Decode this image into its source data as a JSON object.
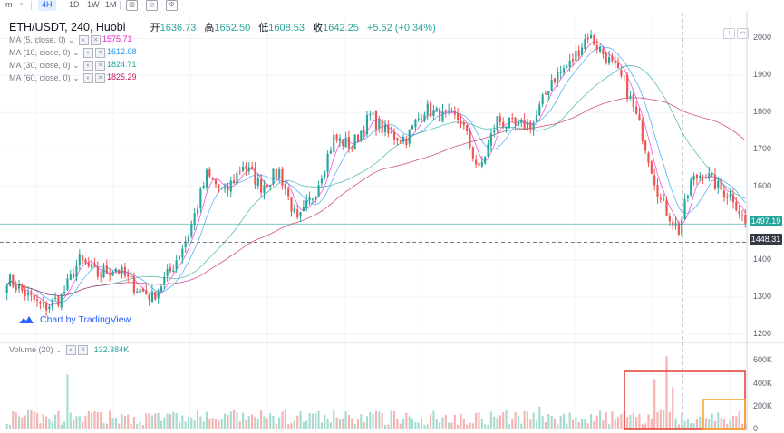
{
  "toolbar": {
    "items": [
      "m",
      "4H",
      "1D",
      "1W",
      "1M"
    ],
    "active": "4H"
  },
  "legend": {
    "title": "ETH/USDT, 240, Huobi",
    "ohlc": [
      {
        "k": "开",
        "v": "1636.73"
      },
      {
        "k": "高",
        "v": "1652.50"
      },
      {
        "k": "低",
        "v": "1608.53"
      },
      {
        "k": "收",
        "v": "1642.25"
      }
    ],
    "change": "+5.52 (+0.34%)"
  },
  "indicators": [
    {
      "label": "MA (5, close, 0)",
      "value": "1575.71",
      "color": "#e91ecc"
    },
    {
      "label": "MA (10, close, 0)",
      "value": "1612.08",
      "color": "#2196f3"
    },
    {
      "label": "MA (30, close, 0)",
      "value": "1824.71",
      "color": "#26a69a"
    },
    {
      "label": "MA (60, close, 0)",
      "value": "1825.29",
      "color": "#c2185b"
    }
  ],
  "volume": {
    "label": "Volume (20)",
    "value": "132.384K"
  },
  "watermark": "Chart by TradingView",
  "colors": {
    "up": "#26a69a",
    "down": "#ef5350",
    "vol_up": "#a5dccf",
    "vol_down": "#f5b3b1",
    "red_box": "#e53935",
    "orange_box": "#f5a623"
  },
  "chart_data": {
    "type": "candlestick",
    "symbol": "ETH/USDT",
    "interval": "240",
    "exchange": "Huobi",
    "price_axis": {
      "ticks": [
        1200,
        1300,
        1400,
        1500,
        1600,
        1700,
        1800,
        1900,
        2000
      ],
      "ylim": [
        1180,
        2060
      ]
    },
    "volume_axis": {
      "ticks": [
        "0",
        "200K",
        "400K",
        "600K"
      ],
      "ylim": [
        0,
        650000
      ]
    },
    "last_price": "1497.19",
    "crosshair_price": "1448.31",
    "close_path": [
      [
        0,
        1350
      ],
      [
        6,
        1310
      ],
      [
        12,
        1270
      ],
      [
        18,
        1300
      ],
      [
        24,
        1400
      ],
      [
        30,
        1360
      ],
      [
        36,
        1380
      ],
      [
        42,
        1330
      ],
      [
        48,
        1300
      ],
      [
        54,
        1370
      ],
      [
        60,
        1470
      ],
      [
        66,
        1630
      ],
      [
        72,
        1580
      ],
      [
        78,
        1660
      ],
      [
        84,
        1600
      ],
      [
        90,
        1640
      ],
      [
        96,
        1500
      ],
      [
        102,
        1590
      ],
      [
        108,
        1730
      ],
      [
        114,
        1710
      ],
      [
        120,
        1790
      ],
      [
        126,
        1740
      ],
      [
        132,
        1730
      ],
      [
        138,
        1810
      ],
      [
        144,
        1790
      ],
      [
        150,
        1780
      ],
      [
        156,
        1640
      ],
      [
        162,
        1780
      ],
      [
        168,
        1760
      ],
      [
        174,
        1770
      ],
      [
        180,
        1890
      ],
      [
        186,
        1930
      ],
      [
        192,
        2010
      ],
      [
        198,
        1950
      ],
      [
        204,
        1880
      ],
      [
        210,
        1740
      ],
      [
        216,
        1560
      ],
      [
        222,
        1480
      ],
      [
        226,
        1610
      ],
      [
        230,
        1640
      ],
      [
        236,
        1590
      ],
      [
        240,
        1570
      ],
      [
        244,
        1497
      ]
    ],
    "total_candles": 245,
    "volume_spikes": [
      [
        20,
        480000
      ],
      [
        176,
        200000
      ],
      [
        214,
        440000
      ],
      [
        218,
        640000
      ],
      [
        220,
        370000
      ]
    ]
  }
}
